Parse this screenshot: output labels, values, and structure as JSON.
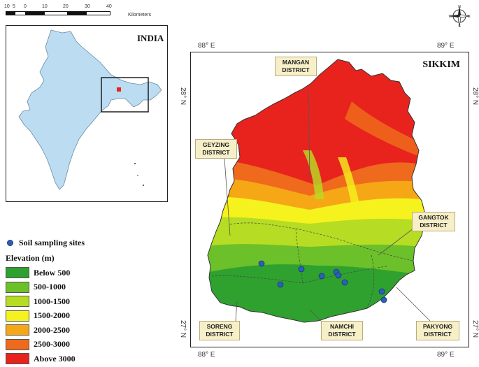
{
  "scale_bar": {
    "ticks": [
      "10",
      "5",
      "0",
      "10",
      "20",
      "30",
      "40"
    ],
    "unit": "Kilometers"
  },
  "inset": {
    "title": "INDIA"
  },
  "map": {
    "title": "SIKKIM",
    "coords": {
      "top_left": "88° E",
      "top_right": "89° E",
      "bottom_left": "88° E",
      "bottom_right": "89° E",
      "left_top": "28° N",
      "right_top": "28° N",
      "left_bottom": "27° N",
      "right_bottom": "27° N"
    },
    "districts": [
      {
        "name": "MANGAN",
        "suffix": "DISTRICT"
      },
      {
        "name": "GEYZING",
        "suffix": "DISTRICT"
      },
      {
        "name": "GANGTOK",
        "suffix": "DISTRICT"
      },
      {
        "name": "SORENG",
        "suffix": "DISTRICT"
      },
      {
        "name": "NAMCHI",
        "suffix": "DISTRICT"
      },
      {
        "name": "PAKYONG",
        "suffix": "DISTRICT"
      }
    ]
  },
  "legend": {
    "sites_label": "Soil sampling sites",
    "elevation_title": "Elevation (m)",
    "classes": [
      {
        "label": "Below 500",
        "color": "#2fa12f"
      },
      {
        "label": "500-1000",
        "color": "#6cc02a"
      },
      {
        "label": "1000-1500",
        "color": "#b6dd23"
      },
      {
        "label": "1500-2000",
        "color": "#f5f21e"
      },
      {
        "label": "2000-2500",
        "color": "#f6a716"
      },
      {
        "label": "2500-3000",
        "color": "#ef6a1c"
      },
      {
        "label": "Above 3000",
        "color": "#e8231e"
      }
    ]
  },
  "compass": {
    "n": "N",
    "e": "E",
    "s": "S",
    "w": "W"
  }
}
